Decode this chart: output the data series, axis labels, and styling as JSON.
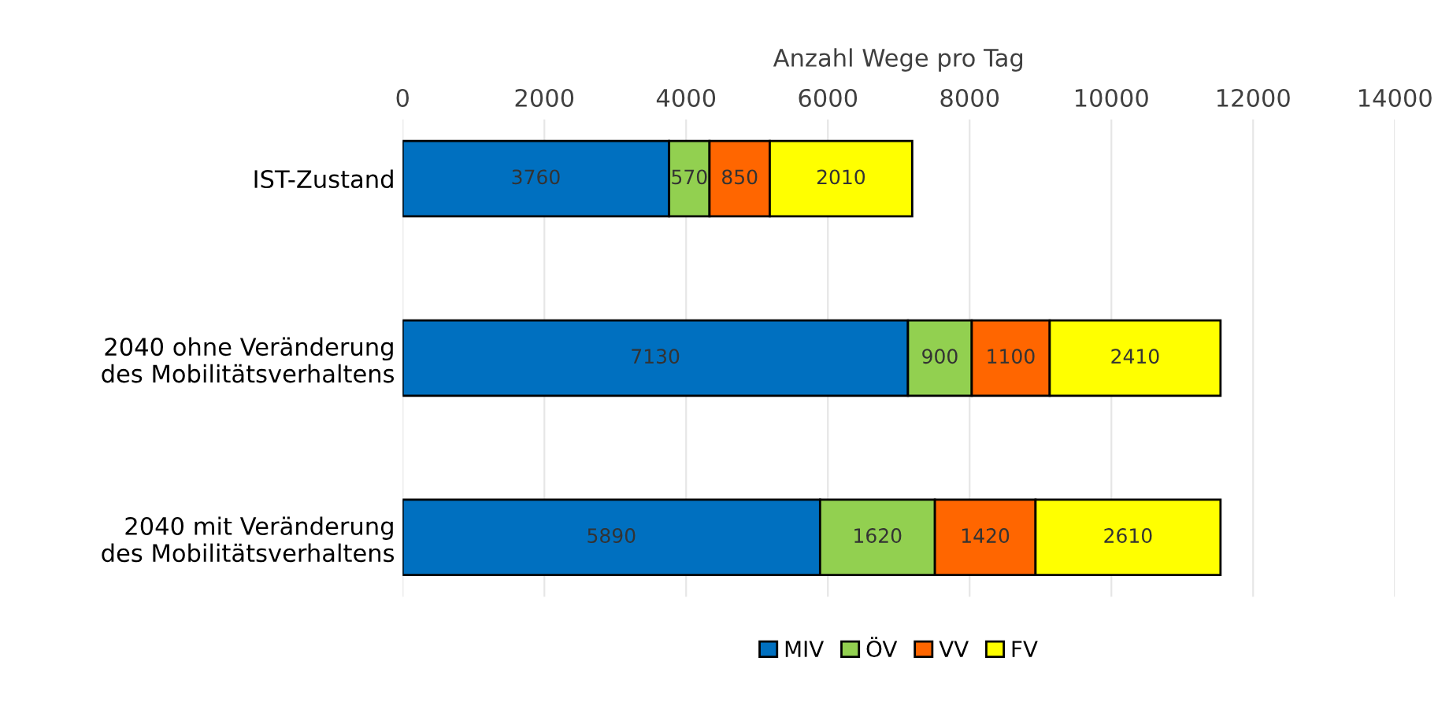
{
  "chart_data": {
    "type": "bar",
    "orientation": "horizontal",
    "stacked": true,
    "xlabel": "Anzahl Wege pro Tag",
    "categories": [
      "IST-Zustand",
      "2040 ohne Veränderung\ndes Mobilitätsverhaltens",
      "2040 mit Veränderung\ndes Mobilitätsverhaltens"
    ],
    "series": [
      {
        "name": "MIV",
        "color": "#0070c0",
        "values": [
          3760,
          7130,
          5890
        ]
      },
      {
        "name": "ÖV",
        "color": "#92d050",
        "values": [
          570,
          900,
          1620
        ]
      },
      {
        "name": "VV",
        "color": "#ff6600",
        "values": [
          850,
          1100,
          1420
        ]
      },
      {
        "name": "FV",
        "color": "#ffff00",
        "values": [
          2010,
          2410,
          2610
        ]
      }
    ],
    "xlim": [
      0,
      14000
    ],
    "xticks": [
      0,
      2000,
      4000,
      6000,
      8000,
      10000,
      12000,
      14000
    ],
    "grid": "x",
    "legend": "bottom",
    "data_labels": true
  }
}
